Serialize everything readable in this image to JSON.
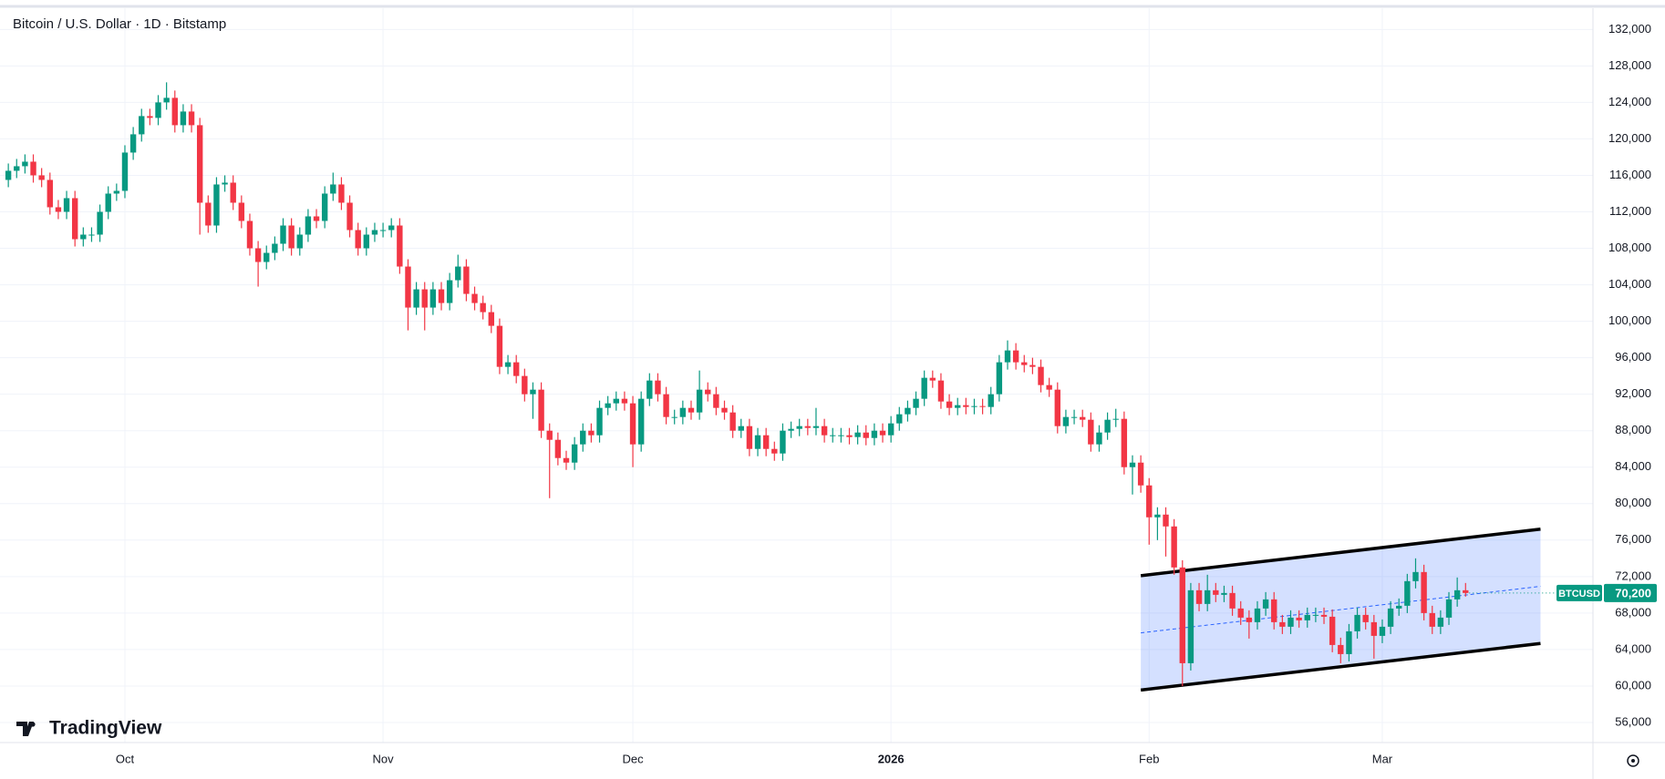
{
  "chart_data": {
    "type": "candlestick",
    "title": "Bitcoin / U.S. Dollar · 1D · Bitstamp",
    "watermark": "TradingView",
    "up_color": "#089981",
    "down_color": "#f23645",
    "grid": true,
    "xlim": [
      -1,
      190.3
    ],
    "xticks": [
      {
        "value": 14,
        "label": "Oct"
      },
      {
        "value": 45,
        "label": "Nov"
      },
      {
        "value": 75,
        "label": "Dec"
      },
      {
        "value": 106,
        "label": "2026"
      },
      {
        "value": 137,
        "label": "Feb"
      },
      {
        "value": 165,
        "label": "Mar"
      }
    ],
    "ylim": [
      53800,
      134300
    ],
    "yticks": [
      {
        "value": 56000,
        "label": "56,000"
      },
      {
        "value": 60000,
        "label": "60,000"
      },
      {
        "value": 64000,
        "label": "64,000"
      },
      {
        "value": 68000,
        "label": "68,000"
      },
      {
        "value": 72000,
        "label": "72,000"
      },
      {
        "value": 76000,
        "label": "76,000"
      },
      {
        "value": 80000,
        "label": "80,000"
      },
      {
        "value": 84000,
        "label": "84,000"
      },
      {
        "value": 88000,
        "label": "88,000"
      },
      {
        "value": 92000,
        "label": "92,000"
      },
      {
        "value": 96000,
        "label": "96,000"
      },
      {
        "value": 100000,
        "label": "100,000"
      },
      {
        "value": 104000,
        "label": "104,000"
      },
      {
        "value": 108000,
        "label": "108,000"
      },
      {
        "value": 112000,
        "label": "112,000"
      },
      {
        "value": 116000,
        "label": "116,000"
      },
      {
        "value": 120000,
        "label": "120,000"
      },
      {
        "value": 124000,
        "label": "124,000"
      },
      {
        "value": 128000,
        "label": "128,000"
      },
      {
        "value": 132000,
        "label": "132,000"
      }
    ],
    "open": [
      115500,
      116500,
      117000,
      117500,
      116000,
      115500,
      112500,
      112000,
      113500,
      109000,
      109500,
      109500,
      112000,
      114000,
      114300,
      118500,
      120500,
      122500,
      122300,
      124000,
      124500,
      121500,
      123000,
      121500,
      113000,
      110500,
      115000,
      115200,
      113000,
      111000,
      108000,
      106500,
      107500,
      108500,
      110500,
      108000,
      109500,
      111500,
      111000,
      114000,
      115000,
      113000,
      110000,
      108000,
      109500,
      110000,
      110000,
      110500,
      106000,
      101500,
      103500,
      101500,
      103500,
      102000,
      104500,
      106000,
      103000,
      102000,
      101000,
      99500,
      95000,
      95500,
      94000,
      92000,
      92500,
      88000,
      87000,
      85000,
      84500,
      86500,
      88000,
      87500,
      90500,
      91000,
      91500,
      91000,
      86500,
      91500,
      93500,
      92000,
      89500,
      89500,
      90500,
      90000,
      92500,
      92000,
      90500,
      90000,
      88000,
      88500,
      86000,
      87500,
      86000,
      85500,
      88000,
      88200,
      88500,
      88300,
      88500,
      87500,
      87500,
      87500,
      87300,
      87800,
      87200,
      88000,
      87500,
      88800,
      89800,
      90500,
      91500,
      93800,
      93500,
      91200,
      90500,
      90800,
      90600,
      90700,
      90600,
      92000,
      95500,
      96800,
      95500,
      95200,
      95000,
      93000,
      92500,
      88500,
      89500,
      89500,
      89200,
      86500,
      87800,
      89200,
      89300,
      84000,
      84500,
      82000,
      78500,
      78800,
      77500,
      73000,
      62500,
      70500,
      69000,
      70500,
      70000,
      70200,
      68500,
      67500,
      67000,
      68500,
      69500,
      67000,
      66500,
      67500,
      67200,
      67800,
      67800,
      67600,
      64500,
      63500,
      66000,
      67800,
      67000,
      65500,
      66500,
      68500,
      68800,
      71500,
      72500,
      68000,
      66500,
      67500,
      69500,
      70500
    ],
    "high": [
      117300,
      117800,
      118300,
      118300,
      116800,
      116300,
      113300,
      114300,
      114300,
      110300,
      110300,
      112800,
      114800,
      115100,
      119300,
      121300,
      123300,
      123300,
      124800,
      126200,
      125300,
      123800,
      123800,
      122300,
      113800,
      115800,
      116000,
      116000,
      113800,
      111800,
      108800,
      108300,
      109300,
      111300,
      111300,
      110300,
      112300,
      112300,
      114800,
      116300,
      115800,
      113800,
      110800,
      110300,
      110800,
      110800,
      111300,
      111300,
      106800,
      104300,
      104300,
      104300,
      104300,
      105300,
      107300,
      106800,
      103800,
      102800,
      101800,
      100300,
      96300,
      96300,
      94800,
      93300,
      93300,
      88800,
      87800,
      85800,
      87300,
      88800,
      88800,
      91300,
      91800,
      92300,
      92300,
      91800,
      92300,
      94300,
      94300,
      92800,
      90300,
      91300,
      91300,
      94600,
      93300,
      92800,
      91300,
      90800,
      89300,
      89300,
      88300,
      88300,
      86800,
      88800,
      89000,
      89300,
      89300,
      90500,
      89300,
      88300,
      88300,
      88300,
      88600,
      88600,
      88800,
      88800,
      89600,
      90600,
      91300,
      92300,
      94600,
      94600,
      94300,
      92000,
      91600,
      91600,
      91500,
      91500,
      92800,
      96300,
      97900,
      97600,
      96300,
      96000,
      95800,
      93800,
      93300,
      90300,
      90300,
      90300,
      90000,
      88600,
      90000,
      90400,
      90100,
      85300,
      85300,
      82800,
      79600,
      79600,
      78300,
      73800,
      71300,
      71300,
      72200,
      71300,
      71000,
      71000,
      69300,
      68300,
      69300,
      70300,
      70300,
      67800,
      68300,
      68300,
      68600,
      68600,
      68600,
      68400,
      65300,
      66800,
      68600,
      68600,
      67800,
      67300,
      69300,
      69600,
      72300,
      74000,
      73300,
      68800,
      68300,
      70300,
      71900,
      71300
    ],
    "low": [
      114700,
      115700,
      116200,
      115200,
      114700,
      111700,
      111200,
      111200,
      108200,
      108200,
      108700,
      108700,
      111200,
      113200,
      113500,
      117700,
      119700,
      121500,
      121500,
      123200,
      120700,
      120700,
      120700,
      109500,
      109700,
      109700,
      114200,
      112200,
      110200,
      107200,
      103800,
      105700,
      106700,
      107700,
      107200,
      107200,
      108700,
      110200,
      110200,
      113200,
      112200,
      109200,
      107200,
      107200,
      108700,
      109200,
      109200,
      105200,
      99000,
      100700,
      99000,
      100700,
      101200,
      101200,
      103700,
      102200,
      101200,
      100200,
      98700,
      94200,
      94200,
      93200,
      91200,
      89300,
      87200,
      80600,
      84200,
      83700,
      83700,
      85700,
      86700,
      86700,
      89700,
      90200,
      90200,
      84000,
      85700,
      90700,
      91200,
      88700,
      88700,
      88700,
      89200,
      89200,
      91200,
      89700,
      89200,
      87200,
      87200,
      85200,
      85200,
      85200,
      84700,
      84700,
      87200,
      87400,
      87500,
      87500,
      86700,
      86700,
      86700,
      86500,
      86500,
      86400,
      86400,
      86700,
      86700,
      88000,
      89000,
      89700,
      90700,
      92700,
      90400,
      89700,
      89700,
      89800,
      89800,
      89800,
      89800,
      91200,
      94700,
      94700,
      94400,
      94200,
      92200,
      91700,
      87700,
      87700,
      88700,
      88400,
      85700,
      85700,
      87000,
      88400,
      83200,
      81000,
      81200,
      75500,
      76000,
      74200,
      72200,
      60000,
      61700,
      68200,
      68200,
      69200,
      69200,
      67700,
      66700,
      65200,
      66200,
      67700,
      66200,
      65700,
      65700,
      66400,
      66400,
      67000,
      66800,
      63700,
      62500,
      62700,
      65200,
      66200,
      63000,
      64700,
      65700,
      67700,
      68000,
      70700,
      67200,
      65700,
      65700,
      66700,
      68700,
      69800
    ],
    "close": [
      116500,
      117000,
      117500,
      116000,
      115500,
      112500,
      112000,
      113500,
      109000,
      109500,
      109500,
      112000,
      114000,
      114300,
      118500,
      120500,
      122500,
      122300,
      124000,
      124500,
      121500,
      123000,
      121500,
      113000,
      110500,
      115000,
      115200,
      113000,
      111000,
      108000,
      106500,
      107500,
      108500,
      110500,
      108000,
      109500,
      111500,
      111000,
      114000,
      115000,
      113000,
      110000,
      108000,
      109500,
      110000,
      110000,
      110500,
      106000,
      101500,
      103500,
      101500,
      103500,
      102000,
      104500,
      106000,
      103000,
      102000,
      101000,
      99500,
      95000,
      95500,
      94000,
      92000,
      92500,
      88000,
      87000,
      85000,
      84500,
      86500,
      88000,
      87500,
      90500,
      91000,
      91500,
      91000,
      86500,
      91500,
      93500,
      92000,
      89500,
      89500,
      90500,
      90000,
      92500,
      92000,
      90500,
      90000,
      88000,
      88500,
      86000,
      87500,
      86000,
      85500,
      88000,
      88200,
      88500,
      88300,
      88500,
      87500,
      87500,
      87500,
      87300,
      87800,
      87200,
      88000,
      87500,
      88800,
      89800,
      90500,
      91500,
      93800,
      93500,
      91200,
      90500,
      90800,
      90600,
      90700,
      90600,
      92000,
      95500,
      96800,
      95500,
      95200,
      95000,
      93000,
      92500,
      88500,
      89500,
      89500,
      89200,
      86500,
      87800,
      89200,
      89300,
      84000,
      84500,
      82000,
      78500,
      78800,
      77500,
      73000,
      62500,
      70500,
      69000,
      70500,
      70000,
      70200,
      68500,
      67500,
      67000,
      68500,
      69500,
      67000,
      66500,
      67500,
      67200,
      67800,
      67800,
      67600,
      64500,
      63500,
      66000,
      67800,
      67000,
      65500,
      66500,
      68500,
      68800,
      71500,
      72500,
      68000,
      66500,
      67500,
      69500,
      70500,
      70200
    ],
    "channel": {
      "color": "#000000",
      "fill": "rgba(41,98,255,0.2)",
      "x": [
        136,
        184
      ],
      "upper": [
        72100,
        77200
      ],
      "lower": [
        59560,
        64670
      ],
      "middle": [
        65830,
        70930
      ]
    },
    "last_price": {
      "symbol": "BTCUSD",
      "value": 70200,
      "label": "70,200",
      "color": "#089981"
    }
  }
}
